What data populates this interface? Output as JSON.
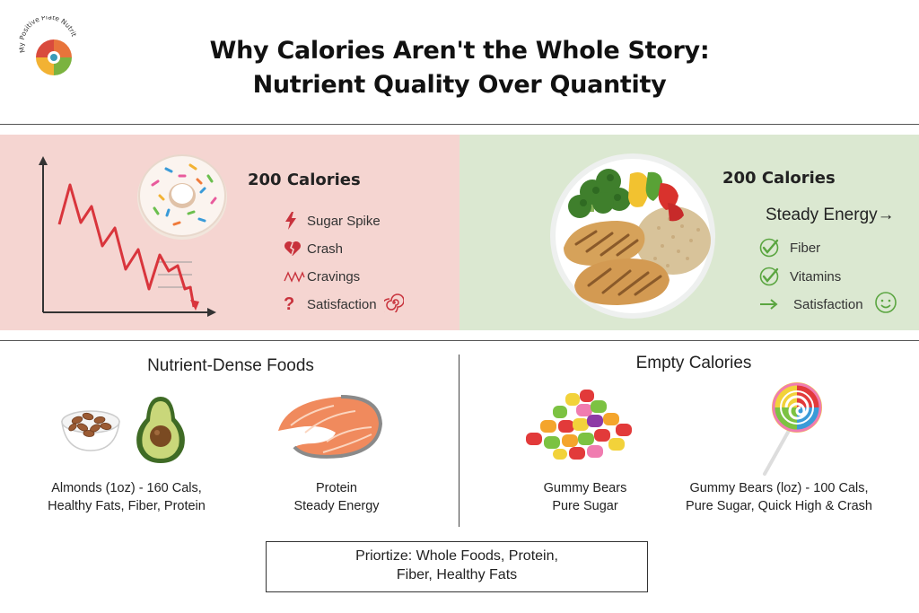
{
  "logo": {
    "text": "My Positive Plate Nutrition"
  },
  "header": {
    "title_line1": "Why Calories Aren't the Whole Story:",
    "title_line2": "Nutrient Quality Over Quantity"
  },
  "left_panel": {
    "calories": "200 Calories",
    "items": [
      {
        "icon": "lightning-icon",
        "label": "Sugar Spike"
      },
      {
        "icon": "broken-heart-icon",
        "label": "Crash"
      },
      {
        "icon": "zigzag-icon",
        "label": "Cravings"
      },
      {
        "icon": "question-icon",
        "label": "Satisfaction"
      }
    ]
  },
  "right_panel": {
    "calories": "200 Calories",
    "steady": "Steady Energy→",
    "items": [
      {
        "icon": "check-icon",
        "label": "Fiber"
      },
      {
        "icon": "check-icon",
        "label": "Vitamins"
      },
      {
        "icon": "arrow-right-icon",
        "label": "Satisfaction"
      }
    ]
  },
  "nutrient_dense": {
    "title": "Nutrient-Dense Foods",
    "almonds_line1": "Almonds (1oz) - 160 Cals,",
    "almonds_line2": "Healthy Fats, Fiber, Protein",
    "protein_line1": "Protein",
    "protein_line2": "Steady Energy"
  },
  "empty_calories": {
    "title": "Empty Calories",
    "gummy_line1": "Gummy Bears",
    "gummy_line2": "Pure Sugar",
    "lollipop_line1": "Gummy Bears (loz) - 100 Cals,",
    "lollipop_line2": "Pure Sugar, Quick High & Crash"
  },
  "footer": {
    "line1": "Priortize: Whole Foods, Protein,",
    "line2": "Fiber, Healthy Fats"
  },
  "colors": {
    "left_bg": "#f5d5d1",
    "right_bg": "#dbe8d1",
    "red_accent": "#c8323c",
    "green_accent": "#5aa540"
  }
}
